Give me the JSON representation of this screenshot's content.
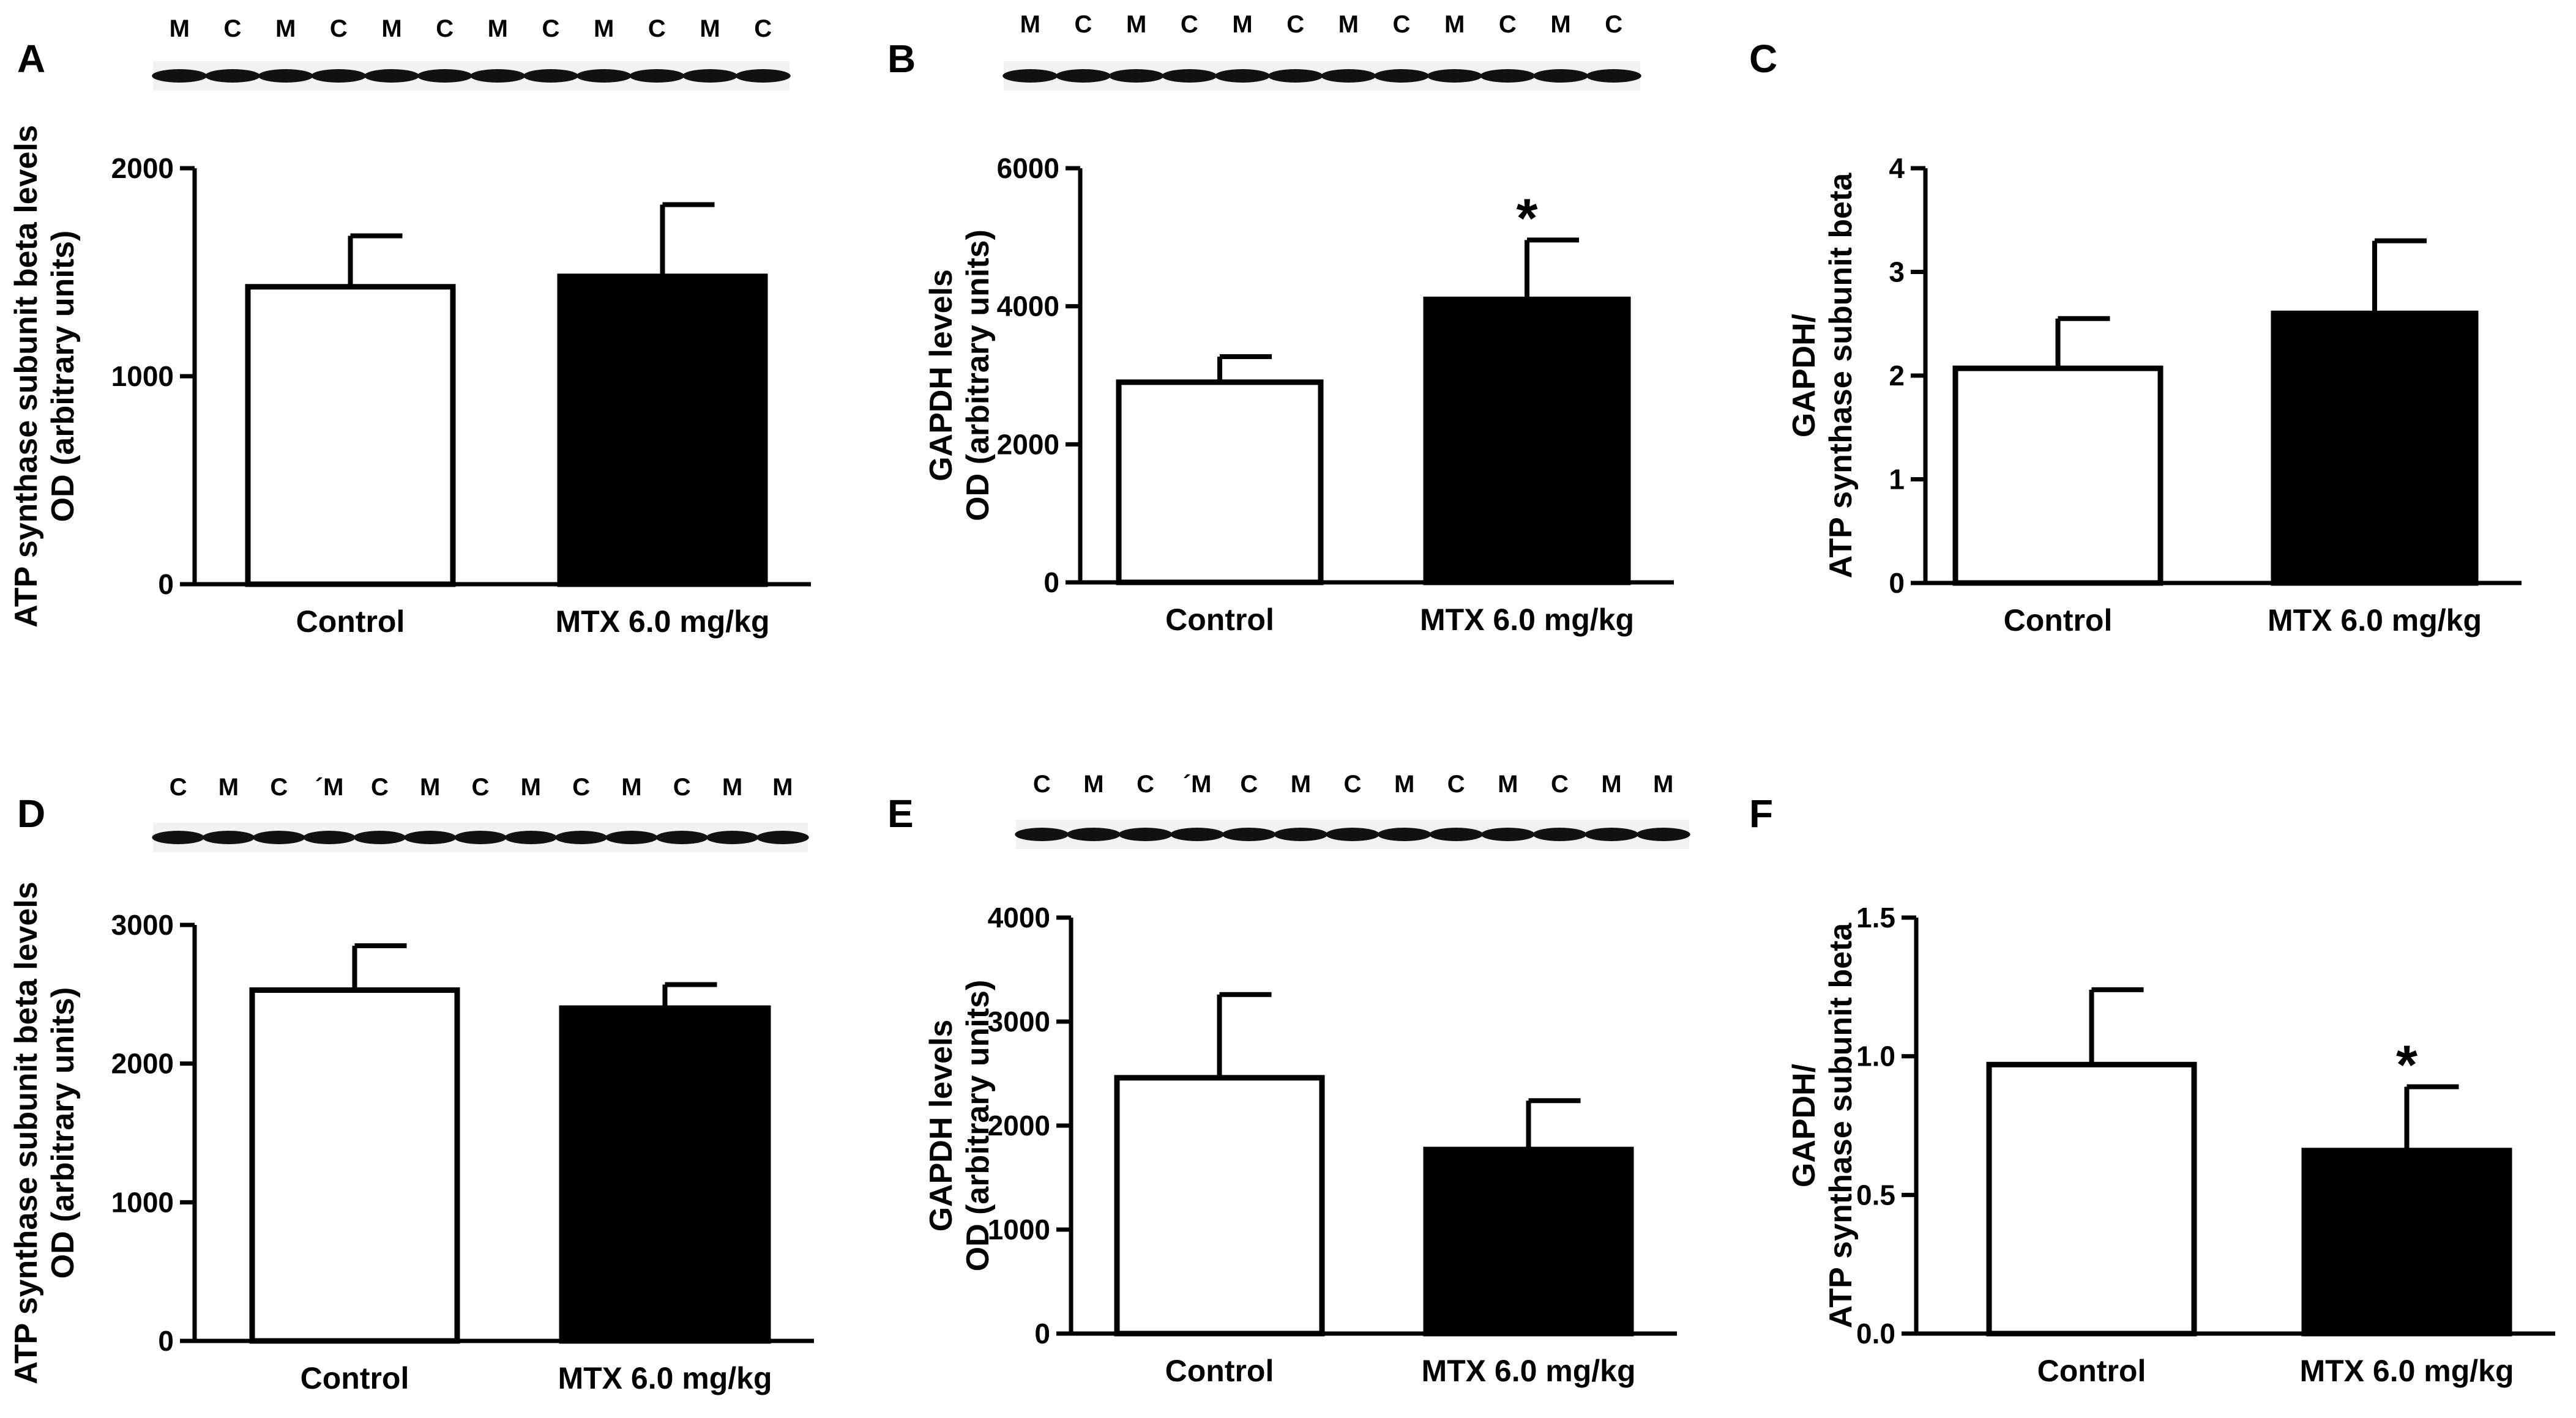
{
  "chart_data": [
    {
      "panel": "A",
      "type": "bar",
      "blot_lanes": [
        "M",
        "C",
        "M",
        "C",
        "M",
        "C",
        "M",
        "C",
        "M",
        "C",
        "M",
        "C"
      ],
      "ylabel": [
        "ATP synthase subunit beta levels",
        "OD (arbitrary units)"
      ],
      "categories": [
        "Control",
        "MTX 6.0 mg/kg"
      ],
      "values": [
        1430,
        1480
      ],
      "errors": [
        245,
        345
      ],
      "significance": [
        "",
        ""
      ],
      "ylim": [
        0,
        2000
      ],
      "yticks": [
        "0",
        "1000",
        "2000"
      ],
      "ytick_values": [
        0,
        1000,
        2000
      ]
    },
    {
      "panel": "B",
      "type": "bar",
      "blot_lanes": [
        "M",
        "C",
        "M",
        "C",
        "M",
        "C",
        "M",
        "C",
        "M",
        "C",
        "M",
        "C"
      ],
      "ylabel": [
        "GAPDH levels",
        "OD (arbitrary units)"
      ],
      "categories": [
        "Control",
        "MTX 6.0 mg/kg"
      ],
      "values": [
        2900,
        4100
      ],
      "errors": [
        370,
        860
      ],
      "significance": [
        "",
        "*"
      ],
      "ylim": [
        0,
        6000
      ],
      "yticks": [
        "0",
        "2000",
        "4000",
        "6000"
      ],
      "ytick_values": [
        0,
        2000,
        4000,
        6000
      ]
    },
    {
      "panel": "C",
      "type": "bar",
      "blot_lanes": [],
      "ylabel": [
        "GAPDH/",
        "ATP synthase subunit beta"
      ],
      "categories": [
        "Control",
        "MTX 6.0 mg/kg"
      ],
      "values": [
        2.07,
        2.6
      ],
      "errors": [
        0.48,
        0.7
      ],
      "significance": [
        "",
        ""
      ],
      "ylim": [
        0,
        4
      ],
      "yticks": [
        "0",
        "1",
        "2",
        "3",
        "4"
      ],
      "ytick_values": [
        0,
        1,
        2,
        3,
        4
      ]
    },
    {
      "panel": "D",
      "type": "bar",
      "blot_lanes": [
        "C",
        "M",
        "C",
        "´M",
        "C",
        "M",
        "C",
        "M",
        "C",
        "M",
        "C",
        "M",
        "M"
      ],
      "ylabel": [
        "ATP synthase subunit beta levels",
        "OD (arbitrary units)"
      ],
      "categories": [
        "Control",
        "MTX 6.0 mg/kg"
      ],
      "values": [
        2530,
        2400
      ],
      "errors": [
        320,
        170
      ],
      "significance": [
        "",
        ""
      ],
      "ylim": [
        0,
        3000
      ],
      "yticks": [
        "0",
        "1000",
        "2000",
        "3000"
      ],
      "ytick_values": [
        0,
        1000,
        2000,
        3000
      ]
    },
    {
      "panel": "E",
      "type": "bar",
      "blot_lanes": [
        "C",
        "M",
        "C",
        "´M",
        "C",
        "M",
        "C",
        "M",
        "C",
        "M",
        "C",
        "M",
        "M"
      ],
      "ylabel": [
        "GAPDH levels",
        "OD (arbitrary units)"
      ],
      "categories": [
        "Control",
        "MTX 6.0 mg/kg"
      ],
      "values": [
        2460,
        1770
      ],
      "errors": [
        800,
        470
      ],
      "significance": [
        "",
        ""
      ],
      "ylim": [
        0,
        4000
      ],
      "yticks": [
        "0",
        "1000",
        "2000",
        "3000",
        "4000"
      ],
      "ytick_values": [
        0,
        1000,
        2000,
        3000,
        4000
      ]
    },
    {
      "panel": "F",
      "type": "bar",
      "blot_lanes": [],
      "ylabel": [
        "GAPDH/",
        "ATP synthase subunit beta"
      ],
      "categories": [
        "Control",
        "MTX 6.0 mg/kg"
      ],
      "values": [
        0.97,
        0.66
      ],
      "errors": [
        0.27,
        0.23
      ],
      "significance": [
        "",
        "*"
      ],
      "ylim": [
        0,
        1.5
      ],
      "yticks": [
        "0.0",
        "0.5",
        "1.0",
        "1.5"
      ],
      "ytick_values": [
        0,
        0.5,
        1.0,
        1.5
      ]
    }
  ],
  "colors": {
    "control_fill": "#ffffff",
    "treated_fill": "#000000",
    "axis": "#000000"
  }
}
